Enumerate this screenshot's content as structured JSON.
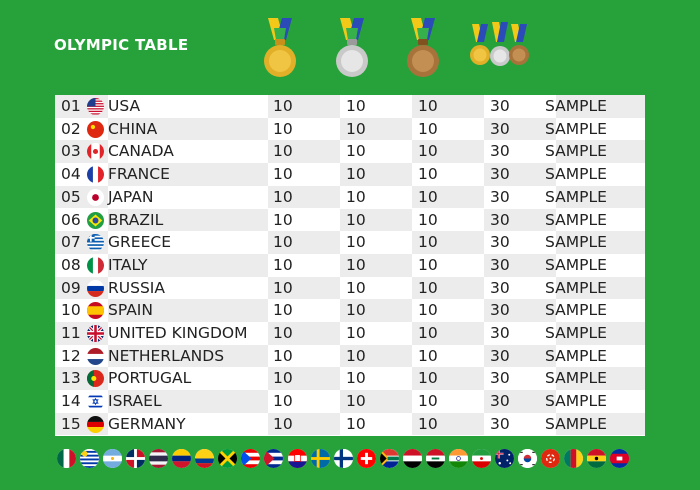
{
  "title": "OLYMPIC TABLE",
  "medals": [
    "gold-medal-icon",
    "silver-medal-icon",
    "bronze-medal-icon",
    "medal-set-icon"
  ],
  "colors": {
    "background": "#27a23b",
    "row_light": "#ffffff",
    "row_dark": "#ececec",
    "gold": "#d9a820",
    "silver": "#c9c9c9",
    "bronze": "#b07a3c"
  },
  "rows": [
    {
      "rank": "01",
      "country": "USA",
      "gold": "10",
      "silver": "10",
      "bronze": "10",
      "total": "30",
      "note": "SAMPLE",
      "flag": "usa-flag-icon"
    },
    {
      "rank": "02",
      "country": "CHINA",
      "gold": "10",
      "silver": "10",
      "bronze": "10",
      "total": "30",
      "note": "SAMPLE",
      "flag": "china-flag-icon"
    },
    {
      "rank": "03",
      "country": "CANADA",
      "gold": "10",
      "silver": "10",
      "bronze": "10",
      "total": "30",
      "note": "SAMPLE",
      "flag": "canada-flag-icon"
    },
    {
      "rank": "04",
      "country": "FRANCE",
      "gold": "10",
      "silver": "10",
      "bronze": "10",
      "total": "30",
      "note": "SAMPLE",
      "flag": "france-flag-icon"
    },
    {
      "rank": "05",
      "country": "JAPAN",
      "gold": "10",
      "silver": "10",
      "bronze": "10",
      "total": "30",
      "note": "SAMPLE",
      "flag": "japan-flag-icon"
    },
    {
      "rank": "06",
      "country": "BRAZIL",
      "gold": "10",
      "silver": "10",
      "bronze": "10",
      "total": "30",
      "note": "SAMPLE",
      "flag": "brazil-flag-icon"
    },
    {
      "rank": "07",
      "country": "GREECE",
      "gold": "10",
      "silver": "10",
      "bronze": "10",
      "total": "30",
      "note": "SAMPLE",
      "flag": "greece-flag-icon"
    },
    {
      "rank": "08",
      "country": "ITALY",
      "gold": "10",
      "silver": "10",
      "bronze": "10",
      "total": "30",
      "note": "SAMPLE",
      "flag": "italy-flag-icon"
    },
    {
      "rank": "09",
      "country": "RUSSIA",
      "gold": "10",
      "silver": "10",
      "bronze": "10",
      "total": "30",
      "note": "SAMPLE",
      "flag": "russia-flag-icon"
    },
    {
      "rank": "10",
      "country": "SPAIN",
      "gold": "10",
      "silver": "10",
      "bronze": "10",
      "total": "30",
      "note": "SAMPLE",
      "flag": "spain-flag-icon"
    },
    {
      "rank": "11",
      "country": "UNITED KINGDOM",
      "gold": "10",
      "silver": "10",
      "bronze": "10",
      "total": "30",
      "note": "SAMPLE",
      "flag": "uk-flag-icon"
    },
    {
      "rank": "12",
      "country": "NETHERLANDS",
      "gold": "10",
      "silver": "10",
      "bronze": "10",
      "total": "30",
      "note": "SAMPLE",
      "flag": "netherlands-flag-icon"
    },
    {
      "rank": "13",
      "country": "PORTUGAL",
      "gold": "10",
      "silver": "10",
      "bronze": "10",
      "total": "30",
      "note": "SAMPLE",
      "flag": "portugal-flag-icon"
    },
    {
      "rank": "14",
      "country": "ISRAEL",
      "gold": "10",
      "silver": "10",
      "bronze": "10",
      "total": "30",
      "note": "SAMPLE",
      "flag": "israel-flag-icon"
    },
    {
      "rank": "15",
      "country": "GERMANY",
      "gold": "10",
      "silver": "10",
      "bronze": "10",
      "total": "30",
      "note": "SAMPLE",
      "flag": "germany-flag-icon"
    }
  ],
  "bottom_flags": [
    "mexico-flag-icon",
    "uruguay-flag-icon",
    "argentina-flag-icon",
    "dominican-republic-flag-icon",
    "thailand-flag-icon",
    "venezuela-flag-icon",
    "colombia-flag-icon",
    "jamaica-flag-icon",
    "puerto-rico-flag-icon",
    "cuba-flag-icon",
    "croatia-flag-icon",
    "sweden-flag-icon",
    "finland-flag-icon",
    "switzerland-flag-icon",
    "south-africa-flag-icon",
    "egypt-flag-icon",
    "iraq-flag-icon",
    "india-flag-icon",
    "iran-flag-icon",
    "australia-flag-icon",
    "south-korea-flag-icon",
    "hong-kong-flag-icon",
    "cameroon-flag-icon",
    "ghana-flag-icon",
    "cambodia-flag-icon"
  ]
}
